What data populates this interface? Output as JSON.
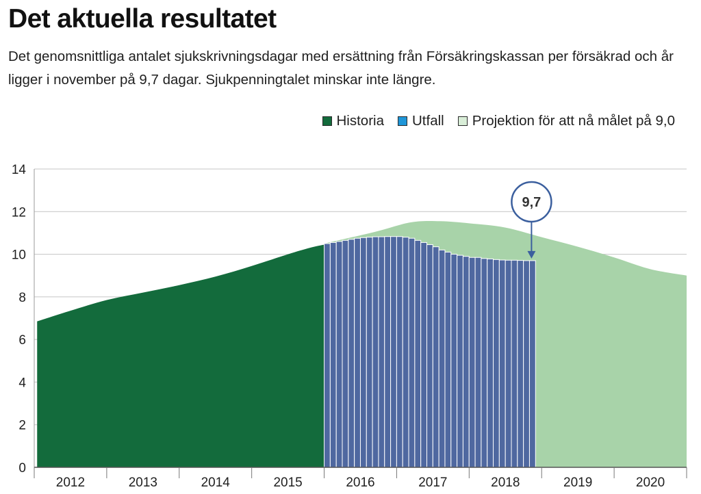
{
  "header": {
    "title": "Det aktuella resultatet",
    "subtitle": "Det genomsnittliga antalet sjukskrivningsdagar med ersättning från Försäkringskassan per försäkrad och år ligger i november på 9,7 dagar. Sjukpenningtalet minskar inte längre."
  },
  "legend": [
    {
      "label": "Historia",
      "color": "#136b3c"
    },
    {
      "label": "Utfall",
      "color": "#1f96d8"
    },
    {
      "label": "Projektion för att nå målet på 9,0",
      "color": "#d9eed8"
    }
  ],
  "colors": {
    "historia": "#136b3c",
    "utfall_bar": "#4f68a0",
    "utfall_stroke": "#ffffff",
    "projektion": "#a8d3a9",
    "callout": "#3b5f9e",
    "grid": "#c4c4c4"
  },
  "chart_data": {
    "type": "area",
    "ylim": [
      0,
      14
    ],
    "yticks": [
      "0",
      "2",
      "4",
      "6",
      "8",
      "10",
      "12",
      "14"
    ],
    "xlim": [
      2012,
      2021
    ],
    "year_labels": [
      "2012",
      "2013",
      "2014",
      "2015",
      "2016",
      "2017",
      "2018",
      "2019",
      "2020"
    ],
    "annotation": {
      "label": "9,7",
      "x": 2018.86,
      "y": 9.7
    },
    "series": [
      {
        "name": "Historia",
        "points": [
          [
            2012.04,
            6.85
          ],
          [
            2012.5,
            7.35
          ],
          [
            2013.0,
            7.85
          ],
          [
            2013.5,
            8.2
          ],
          [
            2014.0,
            8.55
          ],
          [
            2014.5,
            8.95
          ],
          [
            2015.0,
            9.45
          ],
          [
            2015.5,
            10.0
          ],
          [
            2015.8,
            10.3
          ],
          [
            2016.0,
            10.45
          ]
        ]
      },
      {
        "name": "Utfall",
        "months": [
          10.5,
          10.55,
          10.6,
          10.65,
          10.7,
          10.75,
          10.78,
          10.8,
          10.82,
          10.82,
          10.83,
          10.83,
          10.83,
          10.8,
          10.75,
          10.65,
          10.55,
          10.45,
          10.35,
          10.2,
          10.1,
          10.0,
          9.95,
          9.9,
          9.85,
          9.85,
          9.8,
          9.78,
          9.75,
          9.73,
          9.72,
          9.72,
          9.71,
          9.7,
          9.7
        ],
        "start": 2016.0,
        "step": 0.0833
      },
      {
        "name": "Projektion för att nå målet på 9,0",
        "points": [
          [
            2016.0,
            10.5
          ],
          [
            2016.7,
            11.05
          ],
          [
            2017.2,
            11.5
          ],
          [
            2017.6,
            11.55
          ],
          [
            2018.0,
            11.45
          ],
          [
            2018.5,
            11.25
          ],
          [
            2019.0,
            10.8
          ],
          [
            2019.5,
            10.35
          ],
          [
            2020.0,
            9.85
          ],
          [
            2020.5,
            9.3
          ],
          [
            2021.0,
            9.0
          ]
        ]
      }
    ]
  }
}
